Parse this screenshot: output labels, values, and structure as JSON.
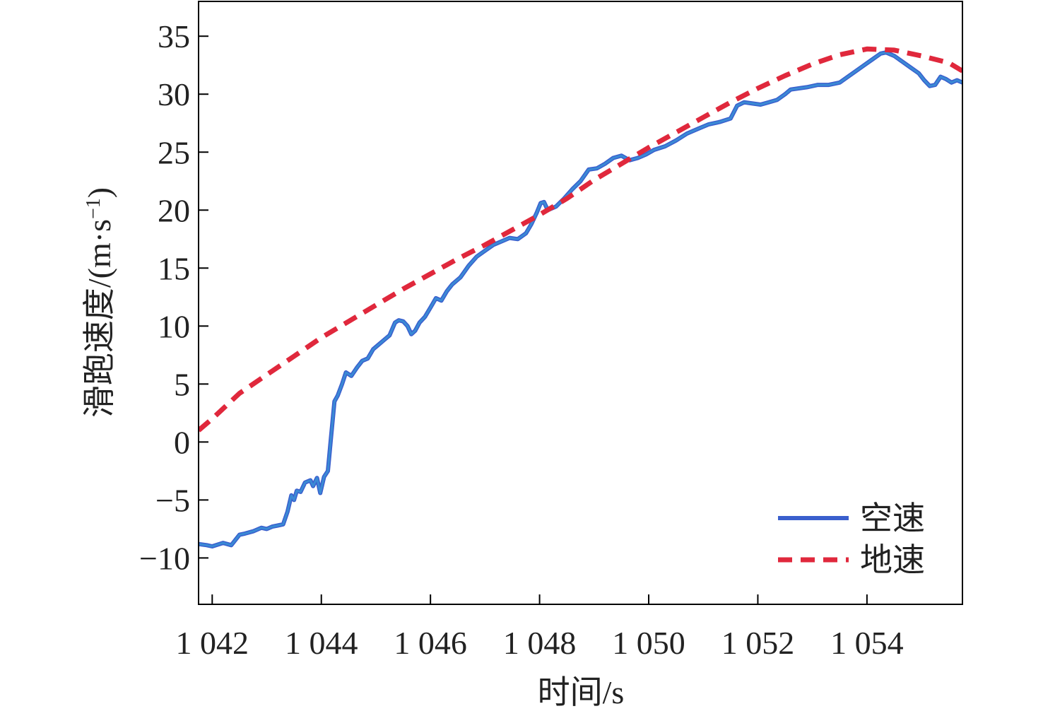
{
  "chart_data": {
    "type": "line",
    "title": "",
    "xlabel": "时间/s",
    "ylabel": "滑跑速度/(m·s",
    "ylabel_sup": "−1",
    "ylabel_close": ")",
    "xlim": [
      1041.75,
      1055.75
    ],
    "ylim": [
      -14,
      38
    ],
    "x_ticks": [
      1042,
      1044,
      1046,
      1048,
      1050,
      1052,
      1054
    ],
    "x_tick_labels": [
      "1 042",
      "1 044",
      "1 046",
      "1 048",
      "1 050",
      "1 052",
      "1 054"
    ],
    "y_ticks": [
      -10,
      -5,
      0,
      5,
      10,
      15,
      20,
      25,
      30,
      35
    ],
    "y_tick_labels": [
      "−10",
      "−5",
      "0",
      "5",
      "10",
      "15",
      "20",
      "25",
      "30",
      "35"
    ],
    "grid": false,
    "legend_position": "bottom-right",
    "colors": {
      "airspeed": "#3a5fcd",
      "airspeed_overlay": "#3b8fd6",
      "groundspeed": "#e0283c",
      "axes": "#000000"
    },
    "series": [
      {
        "name": "空速",
        "style": "solid",
        "x": [
          1041.75,
          1041.9,
          1042.0,
          1042.2,
          1042.35,
          1042.5,
          1042.6,
          1042.75,
          1042.9,
          1043.0,
          1043.1,
          1043.2,
          1043.3,
          1043.38,
          1043.45,
          1043.5,
          1043.55,
          1043.62,
          1043.7,
          1043.8,
          1043.85,
          1043.92,
          1043.98,
          1044.05,
          1044.12,
          1044.18,
          1044.24,
          1044.3,
          1044.38,
          1044.45,
          1044.55,
          1044.65,
          1044.75,
          1044.85,
          1044.95,
          1045.05,
          1045.15,
          1045.25,
          1045.35,
          1045.42,
          1045.5,
          1045.58,
          1045.65,
          1045.72,
          1045.8,
          1045.9,
          1046.0,
          1046.1,
          1046.2,
          1046.3,
          1046.4,
          1046.55,
          1046.7,
          1046.85,
          1047.0,
          1047.15,
          1047.3,
          1047.45,
          1047.6,
          1047.75,
          1047.85,
          1047.95,
          1048.02,
          1048.08,
          1048.15,
          1048.3,
          1048.45,
          1048.6,
          1048.75,
          1048.9,
          1049.05,
          1049.2,
          1049.35,
          1049.5,
          1049.65,
          1049.8,
          1049.95,
          1050.1,
          1050.3,
          1050.5,
          1050.7,
          1050.9,
          1051.1,
          1051.3,
          1051.5,
          1051.62,
          1051.75,
          1051.9,
          1052.05,
          1052.2,
          1052.35,
          1052.5,
          1052.6,
          1052.75,
          1052.9,
          1053.1,
          1053.3,
          1053.5,
          1053.65,
          1053.8,
          1053.95,
          1054.1,
          1054.25,
          1054.35,
          1054.5,
          1054.65,
          1054.8,
          1054.95,
          1055.05,
          1055.15,
          1055.25,
          1055.35,
          1055.45,
          1055.55,
          1055.65,
          1055.75
        ],
        "values": [
          -8.8,
          -8.9,
          -9.0,
          -8.7,
          -8.9,
          -8.0,
          -7.9,
          -7.7,
          -7.4,
          -7.5,
          -7.3,
          -7.2,
          -7.1,
          -6.0,
          -4.6,
          -5.0,
          -4.2,
          -4.3,
          -3.5,
          -3.3,
          -3.8,
          -3.1,
          -4.4,
          -3.0,
          -2.5,
          0.5,
          3.5,
          4.0,
          5.0,
          6.0,
          5.7,
          6.4,
          7.0,
          7.2,
          8.0,
          8.4,
          8.8,
          9.2,
          10.3,
          10.5,
          10.4,
          10.0,
          9.3,
          9.6,
          10.3,
          10.8,
          11.6,
          12.4,
          12.2,
          13.0,
          13.6,
          14.2,
          15.2,
          16.0,
          16.5,
          17.0,
          17.3,
          17.6,
          17.5,
          18.0,
          18.8,
          19.8,
          20.6,
          20.7,
          20.0,
          20.3,
          21.0,
          21.8,
          22.5,
          23.5,
          23.6,
          24.0,
          24.5,
          24.7,
          24.3,
          24.5,
          24.8,
          25.2,
          25.5,
          26.0,
          26.6,
          27.0,
          27.4,
          27.6,
          27.9,
          29.0,
          29.3,
          29.2,
          29.1,
          29.3,
          29.5,
          30.0,
          30.4,
          30.5,
          30.6,
          30.8,
          30.8,
          31.0,
          31.5,
          32.0,
          32.5,
          33.0,
          33.5,
          33.6,
          33.3,
          32.8,
          32.3,
          31.8,
          31.2,
          30.7,
          30.8,
          31.5,
          31.3,
          31.0,
          31.2,
          31.0
        ]
      },
      {
        "name": "地速",
        "style": "dashed",
        "x": [
          1041.75,
          1042,
          1042.5,
          1043,
          1043.5,
          1044,
          1044.5,
          1045,
          1045.5,
          1046,
          1046.5,
          1047,
          1047.5,
          1048,
          1048.5,
          1049,
          1049.5,
          1050,
          1050.5,
          1051,
          1051.5,
          1052,
          1052.5,
          1053,
          1053.5,
          1054,
          1054.5,
          1055,
          1055.5,
          1055.75
        ],
        "values": [
          1.0,
          2.0,
          4.2,
          5.8,
          7.4,
          9.0,
          10.4,
          11.8,
          13.2,
          14.5,
          15.8,
          17.0,
          18.3,
          19.6,
          21.0,
          22.6,
          24.0,
          25.4,
          26.7,
          28.0,
          29.3,
          30.5,
          31.6,
          32.6,
          33.4,
          33.9,
          33.8,
          33.3,
          32.7,
          32.0
        ]
      }
    ]
  }
}
